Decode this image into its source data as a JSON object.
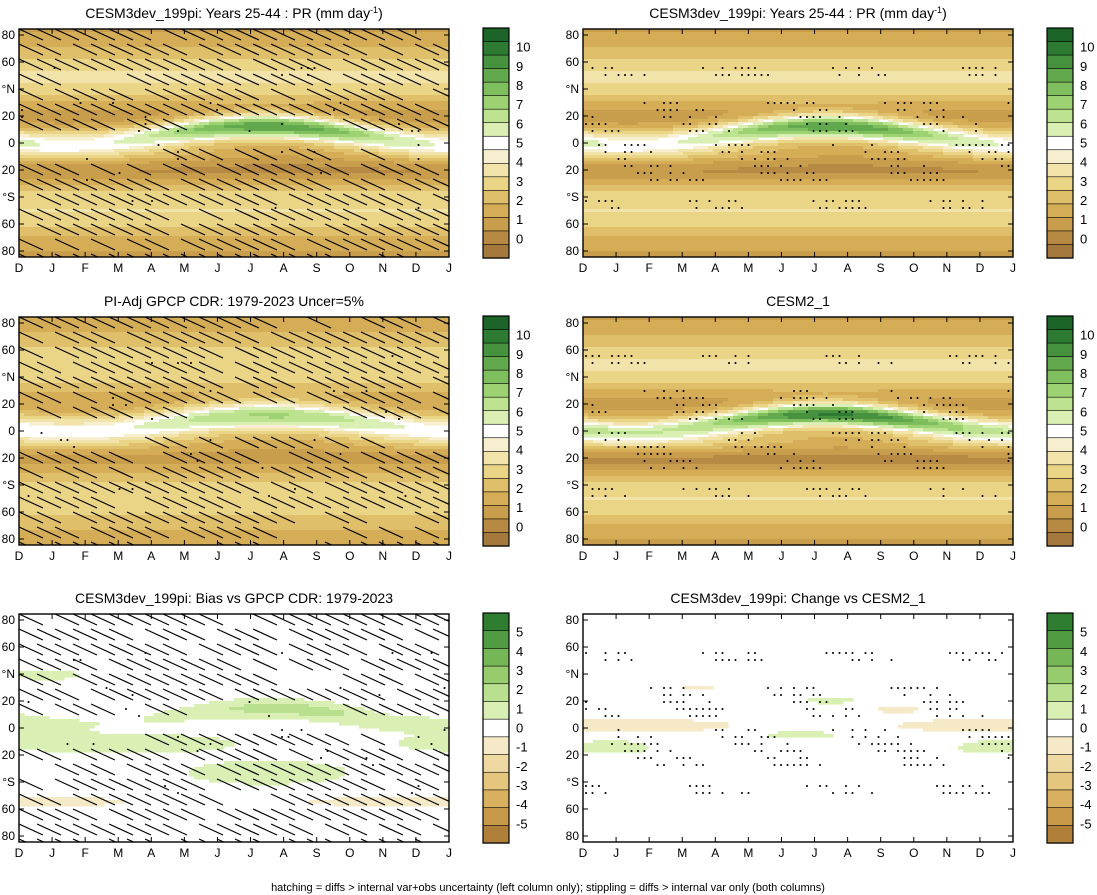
{
  "footnote": "hatching = diffs > internal var+obs uncertainty (left column only); stippling = diffs > internal var only (both columns)",
  "xticks": [
    "D",
    "J",
    "F",
    "M",
    "A",
    "M",
    "J",
    "J",
    "A",
    "S",
    "O",
    "N",
    "D",
    "J"
  ],
  "yticks": [
    "80",
    "60",
    "°N",
    "20",
    "0",
    "20",
    "°S",
    "60",
    "80"
  ],
  "colors": {
    "seq": [
      "#a5783e",
      "#b78a43",
      "#c89d4b",
      "#d5ad56",
      "#e0bf6b",
      "#ead486",
      "#f1e3aa",
      "#f7efcf",
      "#ffffff",
      "#d9efb3",
      "#bde391",
      "#9dd273",
      "#7fbe5d",
      "#62a84d",
      "#46923f",
      "#2d7b33",
      "#1c6427"
    ],
    "div": [
      "#b07f3a",
      "#c79948",
      "#d8b060",
      "#e5c67f",
      "#eed9a2",
      "#f5e9c8",
      "#ffffff",
      "#d9efb3",
      "#b9e08e",
      "#97cc6e",
      "#75b657",
      "#519b43",
      "#2f7d31"
    ]
  },
  "chart_data": [
    {
      "type": "heatmap",
      "title_main": "CESM3dev_199pi: Years 25-44 : PR (mm day",
      "title_sup": "-1",
      "title_end": ")",
      "xlabel": "",
      "ylabel": "",
      "ylim": [
        -90,
        90
      ],
      "cmap": "seq",
      "colorbar_labels": [
        "10",
        "9",
        "8",
        "7",
        "6",
        "5",
        "4",
        "3",
        "2",
        "1",
        "0"
      ],
      "colorbar_range": [
        -1,
        11
      ],
      "kind": "pr_model",
      "hatching": "heavy",
      "stippling": "few"
    },
    {
      "type": "heatmap",
      "title_main": "CESM3dev_199pi: Years 25-44 : PR (mm day",
      "title_sup": "-1",
      "title_end": ")",
      "ylim": [
        -90,
        90
      ],
      "cmap": "seq",
      "colorbar_labels": [
        "10",
        "9",
        "8",
        "7",
        "6",
        "5",
        "4",
        "3",
        "2",
        "1",
        "0"
      ],
      "colorbar_range": [
        -1,
        11
      ],
      "kind": "pr_model",
      "hatching": "none",
      "stippling": "heavy"
    },
    {
      "type": "heatmap",
      "title_main": "PI-Adj GPCP CDR: 1979-2023 Uncer=5%",
      "ylim": [
        -90,
        90
      ],
      "cmap": "seq",
      "colorbar_labels": [
        "10",
        "9",
        "8",
        "7",
        "6",
        "5",
        "4",
        "3",
        "2",
        "1",
        "0"
      ],
      "colorbar_range": [
        -1,
        11
      ],
      "kind": "pr_obs",
      "hatching": "heavy",
      "stippling": "few"
    },
    {
      "type": "heatmap",
      "title_main": "CESM2_1",
      "ylim": [
        -90,
        90
      ],
      "cmap": "seq",
      "colorbar_labels": [
        "10",
        "9",
        "8",
        "7",
        "6",
        "5",
        "4",
        "3",
        "2",
        "1",
        "0"
      ],
      "colorbar_range": [
        -1,
        11
      ],
      "kind": "pr_cesm2",
      "hatching": "none",
      "stippling": "heavy"
    },
    {
      "type": "heatmap",
      "title_main": "CESM3dev_199pi: Bias vs GPCP CDR: 1979-2023",
      "ylim": [
        -90,
        90
      ],
      "cmap": "div",
      "colorbar_labels": [
        "5",
        "4",
        "3",
        "2",
        "1",
        "0",
        "-1",
        "-2",
        "-3",
        "-4",
        "-5"
      ],
      "colorbar_range": [
        -6,
        6
      ],
      "kind": "bias",
      "hatching": "heavy",
      "stippling": "few"
    },
    {
      "type": "heatmap",
      "title_main": "CESM3dev_199pi: Change vs CESM2_1",
      "ylim": [
        -90,
        90
      ],
      "cmap": "div",
      "colorbar_labels": [
        "5",
        "4",
        "3",
        "2",
        "1",
        "0",
        "-1",
        "-2",
        "-3",
        "-4",
        "-5"
      ],
      "colorbar_range": [
        -6,
        6
      ],
      "kind": "change",
      "hatching": "none",
      "stippling": "heavy"
    }
  ]
}
